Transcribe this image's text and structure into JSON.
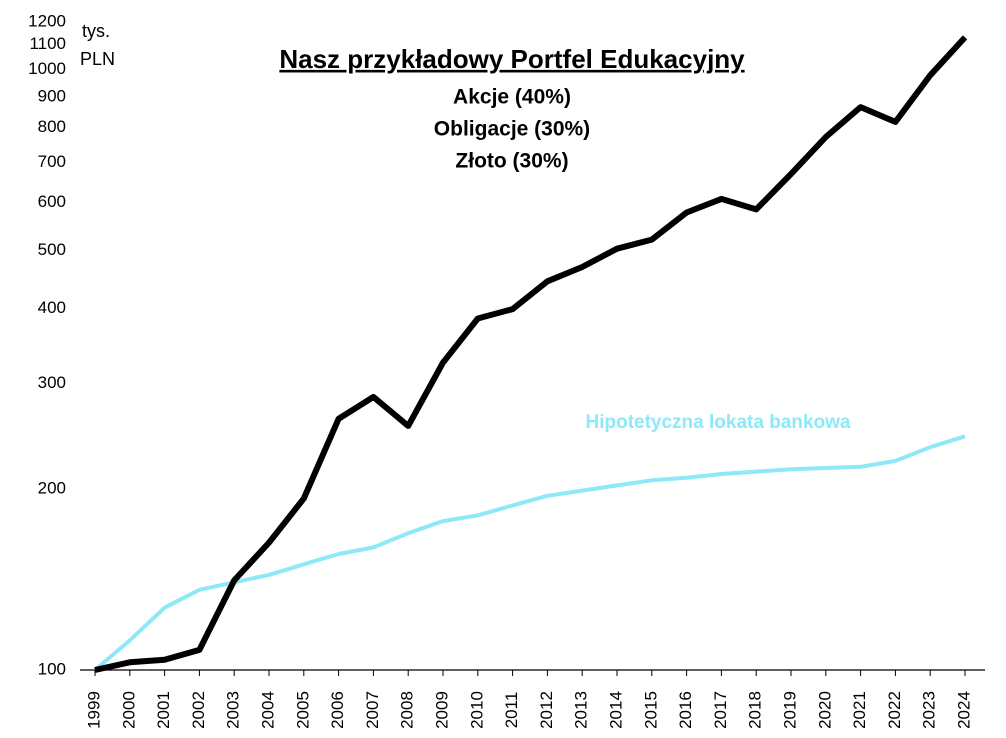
{
  "chart_data": {
    "type": "line",
    "title": "Nasz przykładowy Portfel Edukacyjny",
    "subtitle": [
      "Akcje (40%)",
      "Obligacje (30%)",
      "Złoto (30%)"
    ],
    "y_label": [
      "tys.",
      "PLN"
    ],
    "categories": [
      "1999",
      "2000",
      "2001",
      "2002",
      "2003",
      "2004",
      "2005",
      "2006",
      "2007",
      "2008",
      "2009",
      "2010",
      "2011",
      "2012",
      "2013",
      "2014",
      "2015",
      "2016",
      "2017",
      "2018",
      "2019",
      "2020",
      "2021",
      "2022",
      "2023",
      "2024"
    ],
    "series": [
      {
        "color": "#000000",
        "values": [
          100,
          103,
          104,
          108,
          141,
          163,
          193,
          262,
          285,
          255,
          325,
          385,
          399,
          444,
          469,
          503,
          521,
          578,
          609,
          585,
          670,
          772,
          866,
          818,
          978,
          1131
        ]
      },
      {
        "name": "Hipotetyczna lokata bankowa",
        "color": "#8de8f8",
        "values": [
          100,
          112,
          127,
          136,
          140,
          144,
          150,
          156,
          160,
          169,
          177,
          181,
          188,
          195,
          199,
          203,
          207,
          209,
          212,
          214,
          216,
          217,
          218,
          223,
          235,
          245
        ]
      }
    ],
    "ylim": [
      100,
      1200
    ],
    "yticks": [
      100,
      200,
      300,
      400,
      500,
      600,
      700,
      800,
      900,
      1000,
      1100,
      1200
    ],
    "log_scale": true,
    "grid": false
  }
}
